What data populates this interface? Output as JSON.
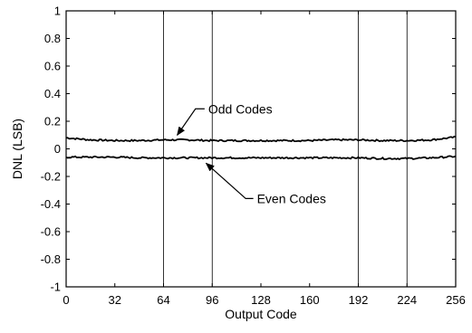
{
  "chart_data": {
    "type": "line",
    "xlabel": "Output Code",
    "ylabel": "DNL (LSB)",
    "xlim": [
      0,
      256
    ],
    "ylim": [
      -1,
      1
    ],
    "xticks": [
      0,
      32,
      64,
      96,
      128,
      160,
      192,
      224,
      256
    ],
    "yticks": [
      1,
      0.8,
      0.6,
      0.4,
      0.2,
      0,
      -0.2,
      -0.4,
      -0.6,
      -0.8,
      -1
    ],
    "ytick_labels": [
      "1",
      "0.8",
      "0.6",
      "0.4",
      "0.2",
      "0",
      "-0.2",
      "-0.4",
      "-0.6",
      "-0.8",
      "-1"
    ],
    "vertical_gridlines_at": [
      64,
      96,
      192,
      224
    ],
    "series": [
      {
        "name": "Odd Codes",
        "color": "#000000",
        "x": [
          0,
          16,
          32,
          48,
          64,
          80,
          96,
          112,
          128,
          144,
          160,
          176,
          192,
          208,
          224,
          240,
          256
        ],
        "y": [
          0.08,
          0.065,
          0.06,
          0.06,
          0.065,
          0.065,
          0.06,
          0.06,
          0.06,
          0.06,
          0.06,
          0.065,
          0.065,
          0.06,
          0.06,
          0.065,
          0.085
        ]
      },
      {
        "name": "Even Codes",
        "color": "#000000",
        "x": [
          0,
          16,
          32,
          48,
          64,
          80,
          96,
          112,
          128,
          144,
          160,
          176,
          192,
          208,
          224,
          240,
          256
        ],
        "y": [
          -0.06,
          -0.06,
          -0.06,
          -0.065,
          -0.065,
          -0.065,
          -0.065,
          -0.065,
          -0.065,
          -0.065,
          -0.065,
          -0.065,
          -0.065,
          -0.07,
          -0.07,
          -0.065,
          -0.055
        ]
      }
    ],
    "annotations": [
      {
        "text": "Odd Codes",
        "points_to": {
          "x": 73,
          "y": 0.06
        }
      },
      {
        "text": "Even Codes",
        "points_to": {
          "x": 92,
          "y": -0.065
        }
      }
    ]
  }
}
